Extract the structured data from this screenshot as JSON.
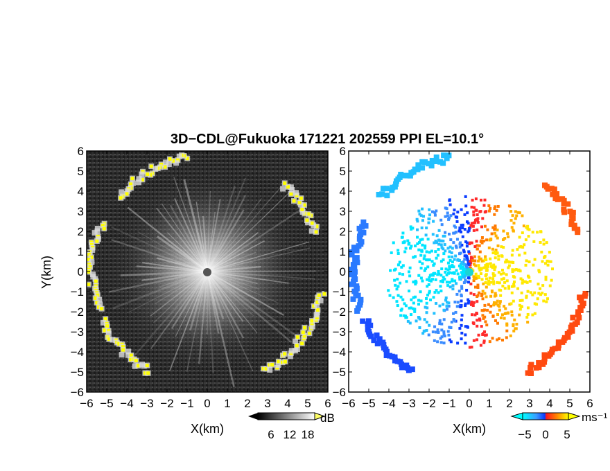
{
  "chart_data": {
    "type": "heatmap",
    "title": "3D−CDL@Fukuoka 171221 202559 PPI EL=10.1°",
    "panels": [
      {
        "name": "reflectivity",
        "xlabel": "X(km)",
        "ylabel": "Y(km)",
        "xlim": [
          -6,
          6
        ],
        "ylim": [
          -6,
          6
        ],
        "xticks": [
          "−6",
          "−5",
          "−4",
          "−3",
          "−2",
          "−1",
          "0",
          "1",
          "2",
          "3",
          "4",
          "5",
          "6"
        ],
        "yticks": [
          "6",
          "5",
          "4",
          "3",
          "2",
          "1",
          "0",
          "−1",
          "−2",
          "−3",
          "−4",
          "−5",
          "−6"
        ],
        "colormap": [
          "#000000",
          "#ffffff",
          "#ffff00"
        ],
        "colorbar": {
          "unit": "dB",
          "ticks": [
            "6",
            "12",
            "18"
          ]
        }
      },
      {
        "name": "doppler velocity",
        "xlabel": "X(km)",
        "ylabel": "",
        "xlim": [
          -6,
          6
        ],
        "ylim": [
          -6,
          6
        ],
        "xticks": [
          "−6",
          "−5",
          "−4",
          "−3",
          "−2",
          "−1",
          "0",
          "1",
          "2",
          "3",
          "4",
          "5",
          "6"
        ],
        "yticks": [
          "6",
          "5",
          "4",
          "3",
          "2",
          "1",
          "0",
          "−1",
          "−2",
          "−3",
          "−4",
          "−5",
          "−6"
        ],
        "colormap": [
          "#00ffff",
          "#0a3cff",
          "#ff1a1a",
          "#ffff00"
        ],
        "colorbar": {
          "unit": "ms⁻¹",
          "ticks": [
            "−5",
            "0",
            "5"
          ]
        }
      }
    ]
  }
}
